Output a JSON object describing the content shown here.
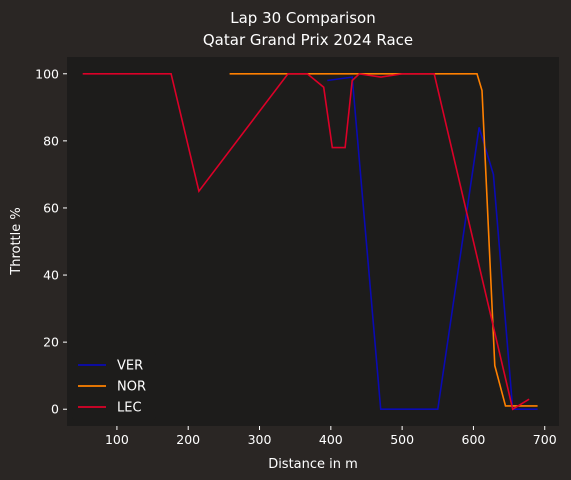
{
  "chart_data": {
    "type": "line",
    "title_line1": "Lap 30 Comparison",
    "title_line2": "Qatar Grand Prix 2024 Race",
    "xlabel": "Distance in m",
    "ylabel": "Throttle %",
    "xlim": [
      30,
      720
    ],
    "ylim": [
      -5,
      105
    ],
    "xticks": [
      100,
      200,
      300,
      400,
      500,
      600,
      700
    ],
    "yticks": [
      0,
      20,
      40,
      60,
      80,
      100
    ],
    "grid": false,
    "legend_position": "lower-left",
    "series": [
      {
        "name": "VER",
        "color": "#0a0ab4",
        "x": [
          395,
          430,
          470,
          550,
          608,
          628,
          655,
          690
        ],
        "y": [
          98,
          99,
          0,
          0,
          84,
          70,
          0,
          0
        ]
      },
      {
        "name": "NOR",
        "color": "#ff8000",
        "x": [
          258,
          605,
          612,
          630,
          645,
          660,
          690
        ],
        "y": [
          100,
          100,
          95,
          13,
          1,
          1,
          1
        ]
      },
      {
        "name": "LEC",
        "color": "#dc0028",
        "x": [
          52,
          176,
          215,
          340,
          367,
          390,
          402,
          420,
          430,
          440,
          470,
          500,
          545,
          655,
          678
        ],
        "y": [
          100,
          100,
          65,
          100,
          100,
          96,
          78,
          78,
          98,
          100,
          99,
          100,
          100,
          0,
          3
        ]
      }
    ]
  }
}
